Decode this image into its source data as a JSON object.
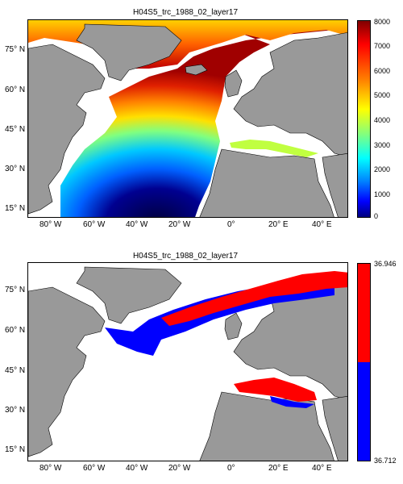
{
  "panels": [
    {
      "title": "H04S5_trc_1988_02_layer17",
      "colorbar": {
        "type": "continuous-jet",
        "ticks": [
          "8000",
          "7000",
          "6000",
          "5000",
          "4000",
          "3000",
          "2000",
          "1000",
          "0"
        ]
      },
      "x_ticks": [
        "80° W",
        "60° W",
        "40° W",
        "20° W",
        "0°",
        "20° E",
        "40° E"
      ],
      "y_ticks": [
        "75° N",
        "60° N",
        "45° N",
        "30° N",
        "15° N"
      ]
    },
    {
      "title": "H04S5_trc_1988_02_layer17",
      "colorbar": {
        "type": "two-class",
        "top_label": "36.946",
        "bottom_label": "36.712",
        "colors": [
          "#ff0000",
          "#0000ff"
        ]
      },
      "x_ticks": [
        "80° W",
        "60° W",
        "40° W",
        "20° W",
        "0°",
        "20° E",
        "40° E"
      ],
      "y_ticks": [
        "75° N",
        "60° N",
        "45° N",
        "30° N",
        "15° N"
      ]
    }
  ],
  "colors": {
    "land": "#999999",
    "ocean_nodata": "#ffffff",
    "jet_high": "#800000",
    "jet_low": "#000080"
  }
}
